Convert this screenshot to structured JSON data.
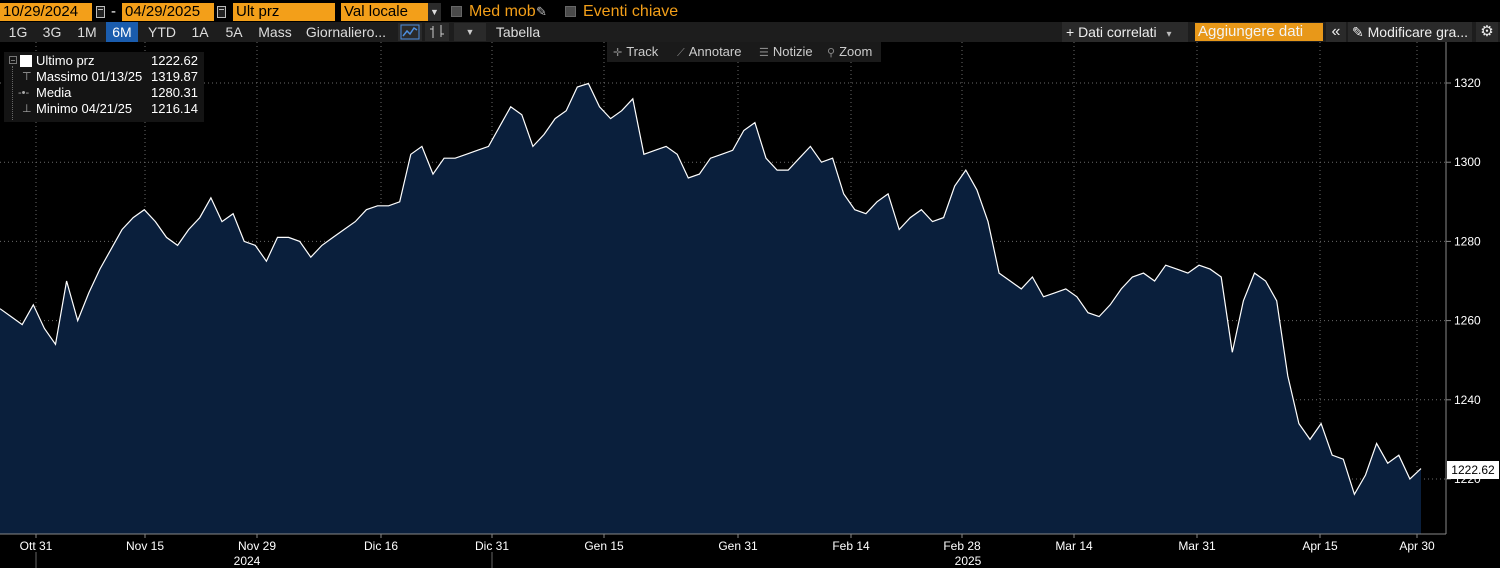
{
  "toolbar": {
    "start_date": "10/29/2024",
    "end_date": "04/29/2025",
    "dash": "-",
    "field": "Ult prz",
    "currency": "Val locale",
    "moving_avg_label": "Med mob",
    "key_events_label": "Eventi chiave"
  },
  "ranges": [
    "1G",
    "3G",
    "1M",
    "6M",
    "YTD",
    "1A",
    "5A",
    "Mass"
  ],
  "active_range": "6M",
  "periodicity": "Giornaliero...",
  "table_label": "Tabella",
  "related_data": "+ Dati correlati",
  "related_arrow": "▾",
  "add_data": "Aggiungere dati",
  "collapse_icon": "«",
  "edit_chart": "✎ Modificare gra...",
  "settings_icon": "⚙",
  "tools": {
    "track": "Track",
    "annotate": "Annotare",
    "news": "Notizie",
    "zoom": "Zoom"
  },
  "legend": {
    "last_label": "Ultimo prz",
    "last_value": "1222.62",
    "high_label": "Massimo 01/13/25",
    "high_value": "1319.87",
    "avg_label": "Media",
    "avg_value": "1280.31",
    "low_label": "Minimo 04/21/25",
    "low_value": "1216.14"
  },
  "last_tag": "1222.62",
  "colors": {
    "accent": "#f39f19",
    "active_tab": "#1a5cad",
    "area_fill": "#0a1f3c",
    "line": "#ffffff",
    "grid": "#6a6a6a"
  },
  "chart_data": {
    "type": "area",
    "x_ticks": [
      "Ott 31",
      "Nov 15",
      "Nov 29",
      "Dic 16",
      "Dic 31",
      "Gen 15",
      "Gen 31",
      "Feb 14",
      "Feb 28",
      "Mar 14",
      "Mar 31",
      "Apr 15",
      "Apr 30"
    ],
    "years": [
      "2024",
      "2025"
    ],
    "y_ticks": [
      1220,
      1240,
      1260,
      1280,
      1300,
      1320
    ],
    "ylim": [
      1206,
      1326
    ],
    "grid": true,
    "series": [
      {
        "values": [
          1263,
          1261,
          1259,
          1264,
          1258,
          1254,
          1270,
          1260,
          1267,
          1273,
          1278,
          1283,
          1286,
          1288,
          1285,
          1281,
          1279,
          1283,
          1286,
          1291,
          1285,
          1287,
          1280,
          1279,
          1275,
          1281,
          1281,
          1280,
          1276,
          1279,
          1281,
          1283,
          1285,
          1288,
          1289,
          1289,
          1290,
          1302,
          1304,
          1297,
          1301,
          1301,
          1302,
          1303,
          1304,
          1309,
          1314,
          1312,
          1304,
          1307,
          1311,
          1313,
          1319,
          1319.87,
          1314,
          1311,
          1313,
          1316,
          1302,
          1303,
          1304,
          1302,
          1296,
          1297,
          1301,
          1302,
          1303,
          1308,
          1310,
          1301,
          1298,
          1298,
          1301,
          1304,
          1300,
          1301,
          1292,
          1288,
          1287,
          1290,
          1292,
          1283,
          1286,
          1288,
          1285,
          1286,
          1294,
          1298,
          1293,
          1285,
          1272,
          1270,
          1268,
          1271,
          1266,
          1267,
          1268,
          1266,
          1262,
          1261,
          1264,
          1268,
          1271,
          1272,
          1270,
          1274,
          1273,
          1272,
          1274,
          1273,
          1271,
          1252,
          1265,
          1272,
          1270,
          1265,
          1246,
          1234,
          1230,
          1234,
          1226,
          1225,
          1216.14,
          1221,
          1229,
          1224,
          1226,
          1220,
          1222.62
        ]
      }
    ]
  }
}
